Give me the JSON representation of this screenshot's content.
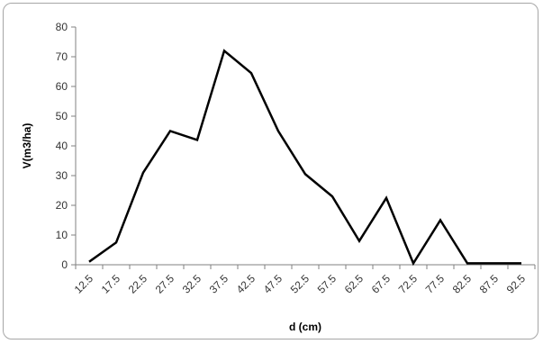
{
  "chart_data": {
    "type": "line",
    "title": "",
    "xlabel": "d (cm)",
    "ylabel": "V(m3/ha)",
    "x": [
      "12.5",
      "17.5",
      "22.5",
      "27.5",
      "32.5",
      "37.5",
      "42.5",
      "47.5",
      "52.5",
      "57.5",
      "62.5",
      "67.5",
      "72.5",
      "77.5",
      "82.5",
      "87.5",
      "92.5"
    ],
    "series": [
      {
        "values": [
          1,
          7.5,
          31,
          45,
          42,
          72,
          64.5,
          45,
          30.5,
          23,
          8,
          22.5,
          0.5,
          15,
          0.5,
          0.5,
          0.5
        ]
      }
    ],
    "ylim": [
      0,
      80
    ],
    "yticks": [
      0,
      10,
      20,
      30,
      40,
      50,
      60,
      70,
      80
    ],
    "grid": false,
    "legend": "none",
    "line_color": "#000000"
  }
}
